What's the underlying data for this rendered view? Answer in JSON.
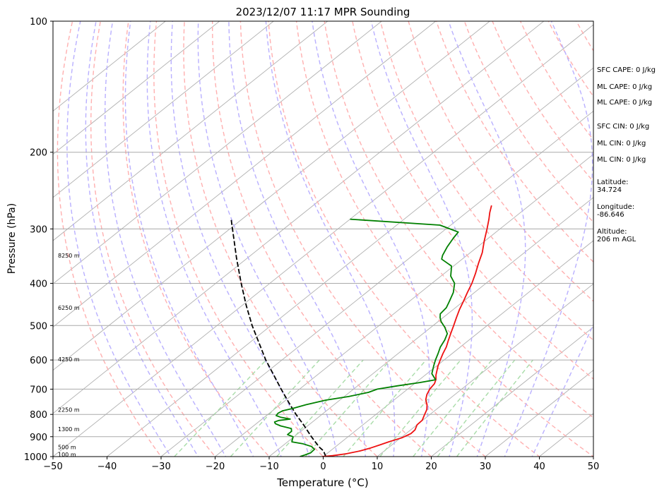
{
  "chart_data": {
    "type": "line",
    "subtype": "skew-t log-p",
    "title": "2023/12/07 11:17 MPR Sounding",
    "xlabel": "Temperature (°C)",
    "ylabel": "Pressure (hPa)",
    "xlim": [
      -50,
      50
    ],
    "ylim": [
      1000,
      100
    ],
    "y_scale": "log",
    "x_ticks": [
      "−50",
      "−40",
      "−30",
      "−20",
      "−10",
      "0",
      "10",
      "20",
      "30",
      "40",
      "50"
    ],
    "y_ticks": [
      {
        "p": 100,
        "label": "100"
      },
      {
        "p": 200,
        "label": "200"
      },
      {
        "p": 300,
        "label": "300"
      },
      {
        "p": 400,
        "label": "400"
      },
      {
        "p": 500,
        "label": "500"
      },
      {
        "p": 600,
        "label": "600"
      },
      {
        "p": 700,
        "label": "700"
      },
      {
        "p": 800,
        "label": "800"
      },
      {
        "p": 900,
        "label": "900"
      },
      {
        "p": 1000,
        "label": "1000"
      }
    ],
    "height_labels": [
      {
        "p": 345,
        "label": "8250 m"
      },
      {
        "p": 455,
        "label": "6250 m"
      },
      {
        "p": 598,
        "label": "4250 m"
      },
      {
        "p": 780,
        "label": "2250 m"
      },
      {
        "p": 865,
        "label": "1300 m"
      },
      {
        "p": 950,
        "label": "500 m"
      },
      {
        "p": 988,
        "label": "100 m"
      }
    ],
    "series": [
      {
        "color": "#ee1111",
        "points": [
          [
            1000,
            -0.2
          ],
          [
            995,
            1.5
          ],
          [
            985,
            3.6
          ],
          [
            970,
            5.6
          ],
          [
            955,
            6.8
          ],
          [
            940,
            7.8
          ],
          [
            925,
            8.7
          ],
          [
            905,
            10.2
          ],
          [
            885,
            10.9
          ],
          [
            868,
            10.8
          ],
          [
            845,
            10.0
          ],
          [
            825,
            9.9
          ],
          [
            800,
            9.0
          ],
          [
            780,
            8.3
          ],
          [
            760,
            7.2
          ],
          [
            740,
            5.8
          ],
          [
            720,
            4.8
          ],
          [
            700,
            4.1
          ],
          [
            680,
            3.7
          ],
          [
            665,
            3.0
          ],
          [
            650,
            2.0
          ],
          [
            620,
            0.3
          ],
          [
            600,
            -0.7
          ],
          [
            580,
            -1.7
          ],
          [
            560,
            -2.6
          ],
          [
            540,
            -3.8
          ],
          [
            520,
            -5.0
          ],
          [
            500,
            -6.2
          ],
          [
            480,
            -7.5
          ],
          [
            460,
            -8.8
          ],
          [
            440,
            -10.0
          ],
          [
            420,
            -11.3
          ],
          [
            400,
            -12.6
          ],
          [
            380,
            -14.2
          ],
          [
            360,
            -16.0
          ],
          [
            340,
            -17.8
          ],
          [
            320,
            -20.1
          ],
          [
            300,
            -22.4
          ],
          [
            285,
            -24.3
          ],
          [
            275,
            -25.7
          ],
          [
            265,
            -27.0
          ]
        ]
      },
      {
        "color": "#008000",
        "points": [
          [
            1000,
            -4.3
          ],
          [
            992,
            -3.8
          ],
          [
            980,
            -3.2
          ],
          [
            962,
            -3.3
          ],
          [
            948,
            -4.5
          ],
          [
            934,
            -6.8
          ],
          [
            925,
            -9.2
          ],
          [
            915,
            -9.6
          ],
          [
            900,
            -10.2
          ],
          [
            890,
            -11.7
          ],
          [
            875,
            -11.7
          ],
          [
            862,
            -12.4
          ],
          [
            850,
            -15.0
          ],
          [
            840,
            -16.5
          ],
          [
            833,
            -17.0
          ],
          [
            826,
            -16.6
          ],
          [
            820,
            -14.8
          ],
          [
            812,
            -17.0
          ],
          [
            805,
            -18.2
          ],
          [
            795,
            -18.4
          ],
          [
            785,
            -18.1
          ],
          [
            775,
            -16.8
          ],
          [
            760,
            -15.2
          ],
          [
            742,
            -12.6
          ],
          [
            728,
            -9.2
          ],
          [
            712,
            -6.5
          ],
          [
            700,
            -5.6
          ],
          [
            688,
            -2.7
          ],
          [
            676,
            0.7
          ],
          [
            666,
            3.0
          ],
          [
            645,
            0.9
          ],
          [
            620,
            -0.5
          ],
          [
            600,
            -1.6
          ],
          [
            580,
            -2.6
          ],
          [
            560,
            -3.7
          ],
          [
            540,
            -4.5
          ],
          [
            522,
            -5.5
          ],
          [
            505,
            -7.4
          ],
          [
            490,
            -9.4
          ],
          [
            480,
            -10.5
          ],
          [
            470,
            -11.4
          ],
          [
            455,
            -11.7
          ],
          [
            440,
            -12.6
          ],
          [
            420,
            -13.9
          ],
          [
            400,
            -15.8
          ],
          [
            385,
            -18.2
          ],
          [
            372,
            -19.6
          ],
          [
            365,
            -20.4
          ],
          [
            352,
            -23.8
          ],
          [
            345,
            -24.5
          ],
          [
            330,
            -25.6
          ],
          [
            315,
            -26.5
          ],
          [
            305,
            -27.0
          ],
          [
            294,
            -32.0
          ],
          [
            285,
            -50.0
          ]
        ]
      }
    ],
    "parcel_profile": {
      "color": "#000000",
      "style": "dashed",
      "points": [
        [
          1000,
          0.5
        ],
        [
          970,
          -1.3
        ],
        [
          950,
          -3.0
        ],
        [
          900,
          -6.8
        ],
        [
          850,
          -10.6
        ],
        [
          800,
          -14.8
        ],
        [
          750,
          -19.0
        ],
        [
          700,
          -23.4
        ],
        [
          650,
          -28.0
        ],
        [
          600,
          -33.0
        ],
        [
          550,
          -38.0
        ],
        [
          500,
          -43.5
        ],
        [
          450,
          -49.2
        ],
        [
          400,
          -55.3
        ],
        [
          350,
          -62.0
        ],
        [
          300,
          -69.5
        ],
        [
          285,
          -72.0
        ]
      ]
    },
    "annotations": [
      "SFC CAPE: 0 J/kg",
      "ML CAPE: 0 J/kg",
      "ML CAPE: 0 J/kg",
      "SFC CIN: 0 J/kg",
      "ML CIN: 0 J/kg",
      "ML CIN: 0 J/kg",
      "Latitude:\n34.724",
      "Longitude:\n-86.646",
      "Altitude:\n206 m AGL"
    ],
    "background": {
      "isotherm_color": "#b0b0b0",
      "dry_adiabat_color": "#ffb0b0",
      "moist_adiabat_color": "#b9b0ff",
      "mixing_ratio_color": "#a8dca8"
    }
  }
}
